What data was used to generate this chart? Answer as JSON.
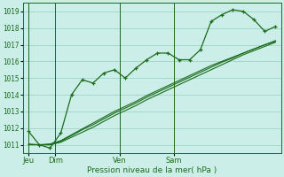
{
  "background_color": "#cceee8",
  "grid_color": "#99ccbb",
  "line_color": "#1a6b1a",
  "xlabel": "Pression niveau de la mer( hPa )",
  "ylim": [
    1010.5,
    1019.5
  ],
  "yticks": [
    1011,
    1012,
    1013,
    1014,
    1015,
    1016,
    1017,
    1018,
    1019
  ],
  "day_positions": [
    0.0,
    2.5,
    8.5,
    13.5
  ],
  "day_labels": [
    "Jeu",
    "Dim",
    "Ven",
    "Sam"
  ],
  "series1_y": [
    1011.8,
    1011.0,
    1010.8,
    1011.7,
    1014.0,
    1014.9,
    1014.7,
    1015.3,
    1015.5,
    1015.0,
    1015.6,
    1016.1,
    1016.5,
    1016.5,
    1016.1,
    1016.1,
    1016.7,
    1018.4,
    1018.8,
    1019.1,
    1019.0,
    1018.5,
    1017.8,
    1018.1
  ],
  "series2_y": [
    1011.05,
    1011.0,
    1011.0,
    1011.2,
    1011.55,
    1011.9,
    1012.2,
    1012.55,
    1012.9,
    1013.2,
    1013.5,
    1013.85,
    1014.15,
    1014.45,
    1014.75,
    1015.05,
    1015.35,
    1015.65,
    1015.95,
    1016.2,
    1016.5,
    1016.75,
    1017.0,
    1017.25
  ],
  "series3_y": [
    1011.0,
    1011.0,
    1011.0,
    1011.15,
    1011.45,
    1011.75,
    1012.05,
    1012.4,
    1012.75,
    1013.05,
    1013.35,
    1013.7,
    1014.0,
    1014.3,
    1014.6,
    1014.9,
    1015.2,
    1015.5,
    1015.8,
    1016.1,
    1016.4,
    1016.65,
    1016.9,
    1017.15
  ],
  "series4_y": [
    1011.0,
    1011.0,
    1011.05,
    1011.25,
    1011.6,
    1011.95,
    1012.3,
    1012.65,
    1013.0,
    1013.3,
    1013.6,
    1013.95,
    1014.25,
    1014.55,
    1014.85,
    1015.15,
    1015.45,
    1015.75,
    1016.0,
    1016.25,
    1016.5,
    1016.75,
    1017.0,
    1017.2
  ],
  "xlim": [
    -0.5,
    23.5
  ],
  "n_points": 24
}
